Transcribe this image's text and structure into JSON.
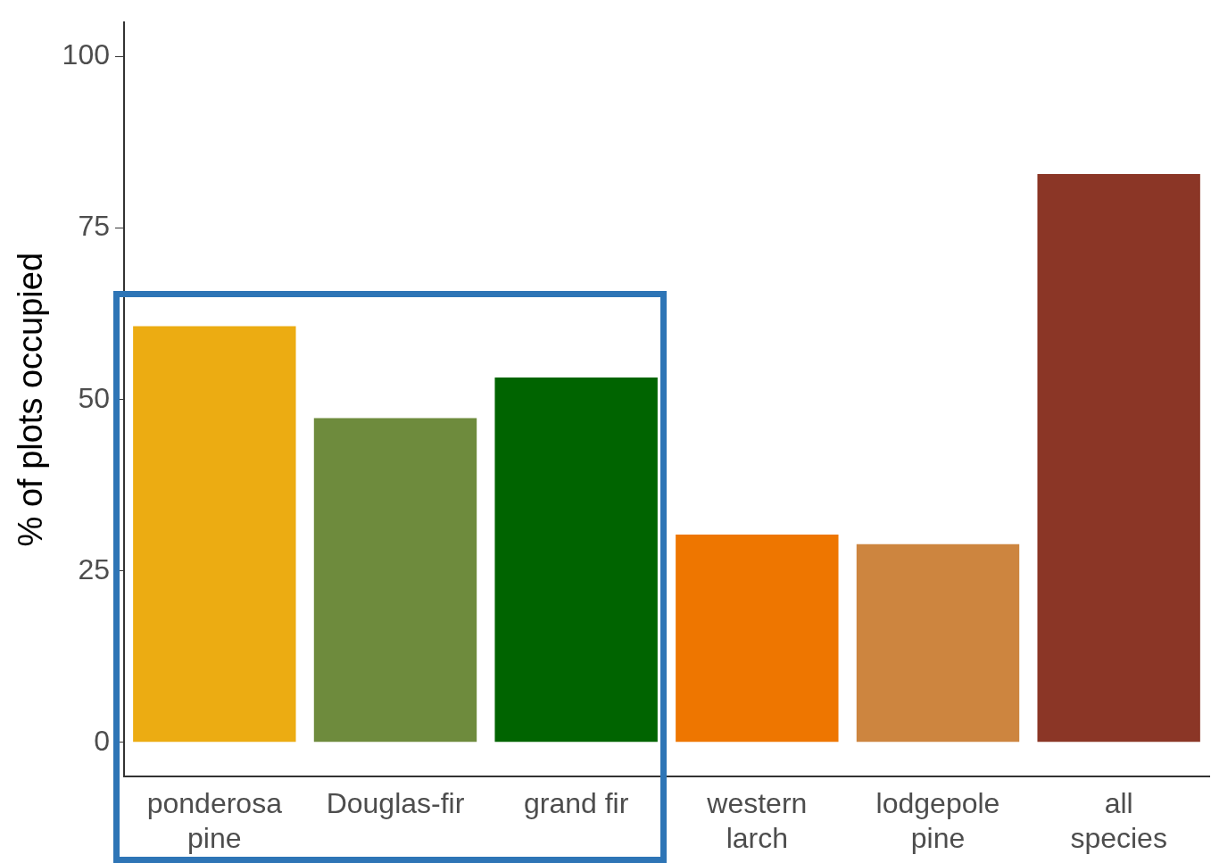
{
  "chart_data": {
    "type": "bar",
    "ylabel": "% of plots occupied",
    "categories": [
      "ponderosa pine",
      "Douglas-fir",
      "grand fir",
      "western larch",
      "lodgepole pine",
      "all species"
    ],
    "values": [
      60.7,
      47.3,
      53.2,
      30.3,
      28.9,
      82.9
    ],
    "colors": [
      "#ecac12",
      "#6e8b3d",
      "#006400",
      "#ee7600",
      "#cd853f",
      "#8b3626"
    ],
    "ylim": [
      -5,
      105
    ],
    "yticks": [
      0,
      25,
      50,
      75,
      100
    ],
    "grid": false,
    "legend": false
  }
}
